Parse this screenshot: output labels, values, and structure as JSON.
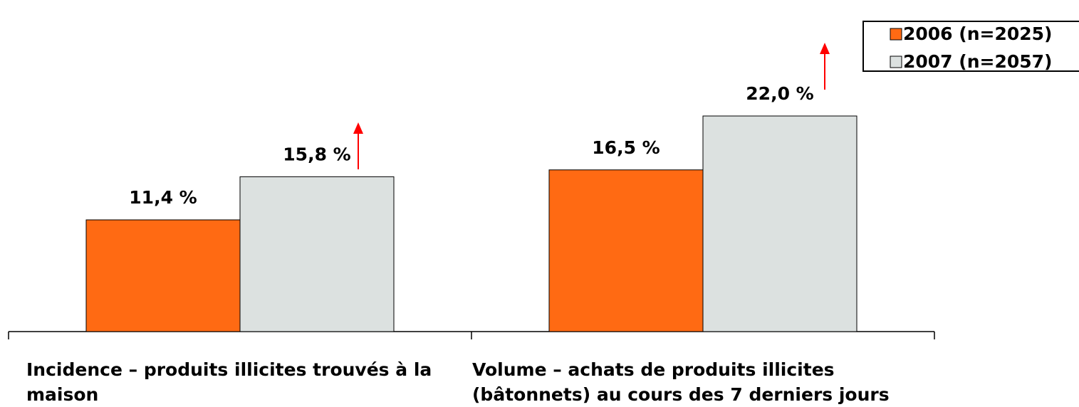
{
  "chart_data": {
    "type": "bar",
    "categories": [
      "Incidence – produits illicites trouvés à la maison",
      "Volume – achats de produits illicites (bâtonnets) au cours des 7 derniers jours"
    ],
    "series": [
      {
        "name": "2006 (n=2025)",
        "color": "#ff6a13",
        "values": [
          11.4,
          16.5
        ],
        "value_labels": [
          "11,4 %",
          "16,5 %"
        ]
      },
      {
        "name": "2007 (n=2057)",
        "color": "#dce1e0",
        "values": [
          15.8,
          22.0
        ],
        "value_labels": [
          "15,8 %",
          "22,0 %"
        ]
      }
    ],
    "legend": "upper right"
  }
}
